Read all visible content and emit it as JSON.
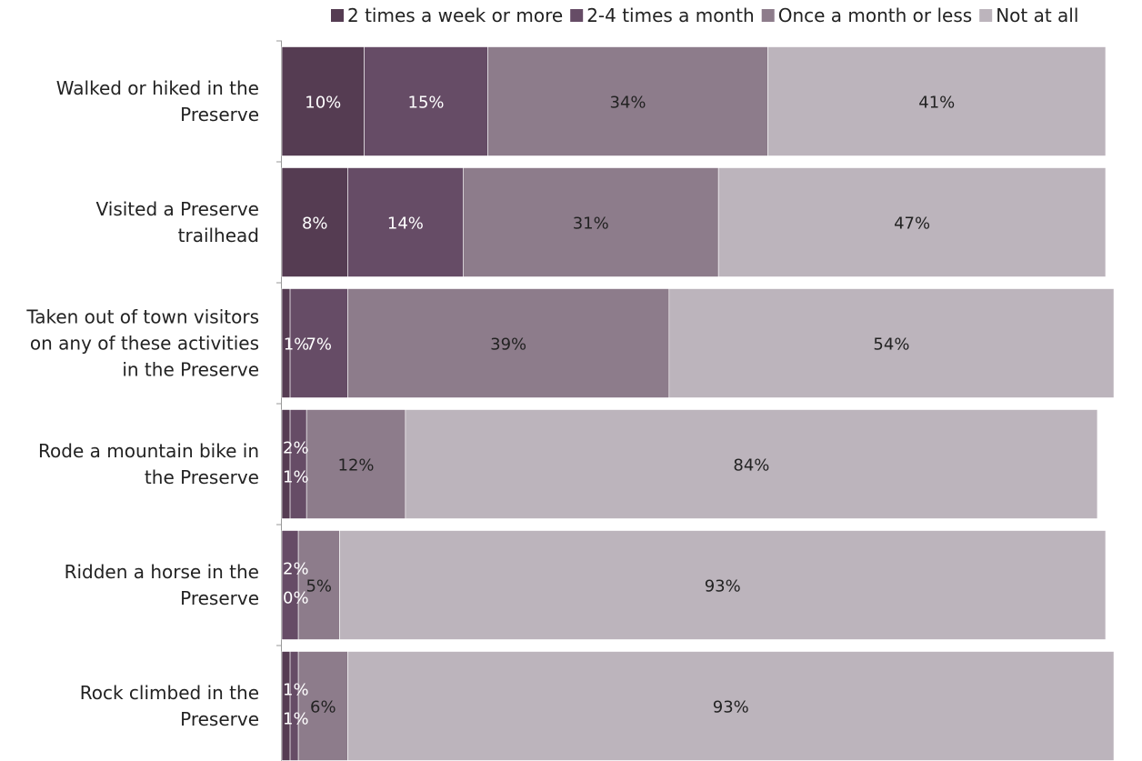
{
  "chart_data": {
    "type": "bar",
    "orientation": "horizontal",
    "stacked": true,
    "categories": [
      "Walked or hiked in the Preserve",
      "Visited a Preserve trailhead",
      "Taken out of town visitors on any of these activities in the Preserve",
      "Rode a mountain bike in the Preserve",
      "Ridden a horse in the Preserve",
      "Rock climbed in the Preserve"
    ],
    "series": [
      {
        "name": "2 times a week or more",
        "color": "#553c52",
        "values": [
          10,
          8,
          1,
          1,
          0,
          1
        ]
      },
      {
        "name": "2-4 times a month",
        "color": "#664c66",
        "values": [
          15,
          14,
          7,
          2,
          2,
          1
        ]
      },
      {
        "name": "Once a month or less",
        "color": "#8d7c8b",
        "values": [
          34,
          31,
          39,
          12,
          5,
          6
        ]
      },
      {
        "name": "Not at all",
        "color": "#bcb4bc",
        "values": [
          41,
          47,
          54,
          84,
          93,
          93
        ]
      }
    ],
    "xlim": [
      0,
      103
    ],
    "grid": false,
    "legend_position": "top-right"
  }
}
